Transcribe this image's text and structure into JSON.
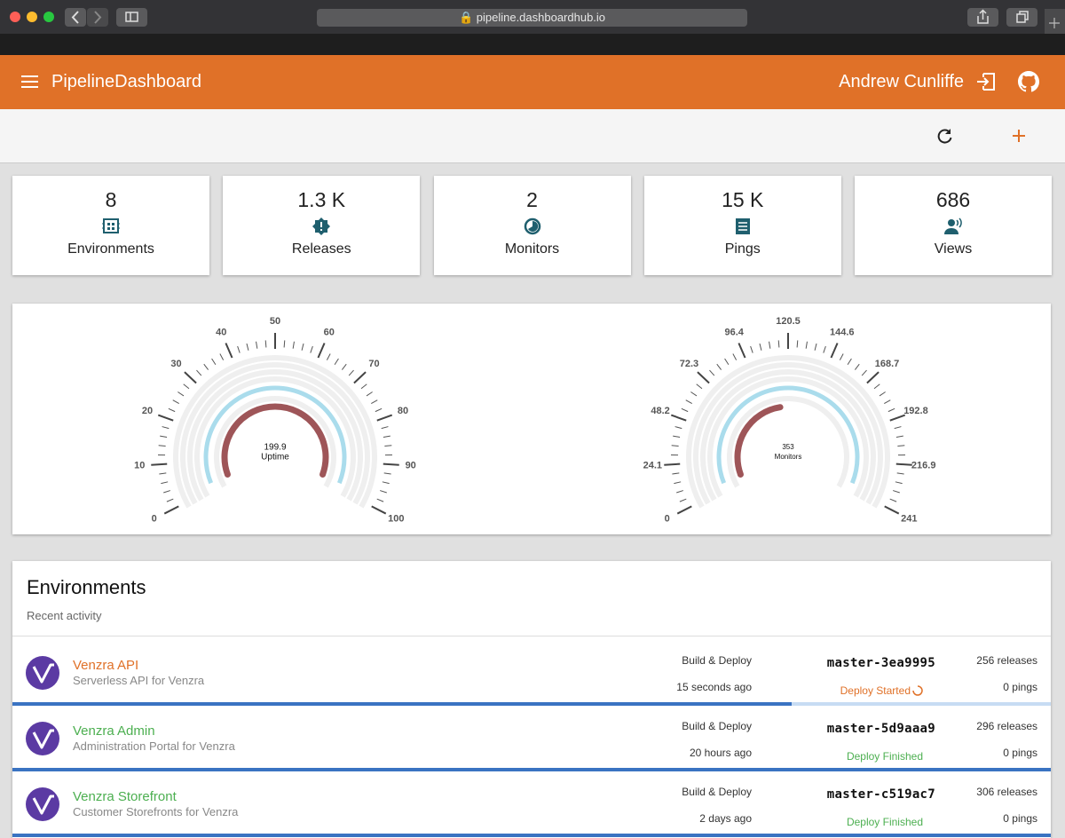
{
  "browser": {
    "url": "pipeline.dashboardhub.io"
  },
  "header": {
    "title": "PipelineDashboard",
    "user": "Andrew Cunliffe"
  },
  "stats": [
    {
      "value": "8",
      "label": "Environments"
    },
    {
      "value": "1.3 K",
      "label": "Releases"
    },
    {
      "value": "2",
      "label": "Monitors"
    },
    {
      "value": "15 K",
      "label": "Pings"
    },
    {
      "value": "686",
      "label": "Views"
    }
  ],
  "gauges": [
    {
      "value": 199.9,
      "label": "Uptime",
      "ticks": [
        0,
        10,
        20,
        30,
        40,
        50,
        60,
        70,
        80,
        90,
        100
      ]
    },
    {
      "value": 353,
      "label": "Monitors",
      "ticks": [
        0,
        24.1,
        48.2,
        72.3,
        96.4,
        120.5,
        144.6,
        168.7,
        192.8,
        216.9,
        241
      ]
    }
  ],
  "environments": {
    "title": "Environments",
    "subtitle": "Recent activity",
    "rows": [
      {
        "name": "Venzra API",
        "description": "Serverless API for Venzra",
        "pipeline": "Build & Deploy",
        "time": "15 seconds ago",
        "tag": "master-3ea9995",
        "status": "Deploy Started",
        "releases": "256 releases",
        "pings": "0 pings"
      },
      {
        "name": "Venzra Admin",
        "description": "Administration Portal for Venzra",
        "pipeline": "Build & Deploy",
        "time": "20 hours ago",
        "tag": "master-5d9aaa9",
        "status": "Deploy Finished",
        "releases": "296 releases",
        "pings": "0 pings"
      },
      {
        "name": "Venzra Storefront",
        "description": "Customer Storefronts for Venzra",
        "pipeline": "Build & Deploy",
        "time": "2 days ago",
        "tag": "master-c519ac7",
        "status": "Deploy Finished",
        "releases": "306 releases",
        "pings": "0 pings"
      }
    ]
  }
}
